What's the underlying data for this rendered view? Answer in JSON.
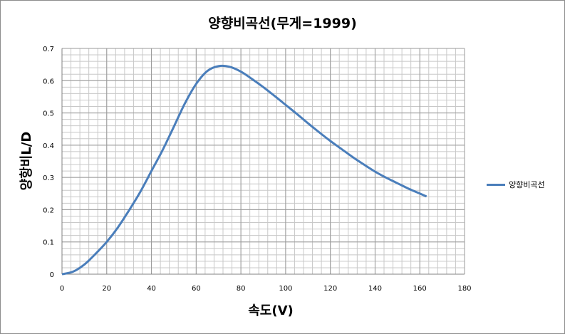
{
  "chart_data": {
    "type": "line",
    "title": "양향비곡선(무게=1999)",
    "xlabel": "속도(V)",
    "ylabel": "양항비L/D",
    "xlim": [
      0,
      180
    ],
    "ylim": [
      0,
      0.7
    ],
    "x_ticks": [
      "0",
      "20",
      "40",
      "60",
      "80",
      "100",
      "120",
      "140",
      "160",
      "180"
    ],
    "y_ticks": [
      "0",
      "0.1",
      "0.2",
      "0.3",
      "0.4",
      "0.5",
      "0.6",
      "0.7"
    ],
    "grid": true,
    "legend_position": "right",
    "series": [
      {
        "name": "양향비곡선",
        "color": "#4a7ebb",
        "x": [
          0,
          5,
          10,
          15,
          20,
          25,
          30,
          35,
          40,
          45,
          50,
          55,
          60,
          65,
          70,
          75,
          80,
          85,
          90,
          95,
          100,
          105,
          110,
          115,
          120,
          125,
          130,
          135,
          140,
          145,
          150,
          155,
          160,
          163
        ],
        "y": [
          0,
          0.008,
          0.03,
          0.063,
          0.1,
          0.145,
          0.198,
          0.255,
          0.32,
          0.385,
          0.457,
          0.53,
          0.59,
          0.63,
          0.645,
          0.643,
          0.628,
          0.605,
          0.58,
          0.553,
          0.525,
          0.497,
          0.468,
          0.44,
          0.413,
          0.388,
          0.363,
          0.34,
          0.318,
          0.299,
          0.282,
          0.265,
          0.25,
          0.241
        ]
      }
    ]
  }
}
